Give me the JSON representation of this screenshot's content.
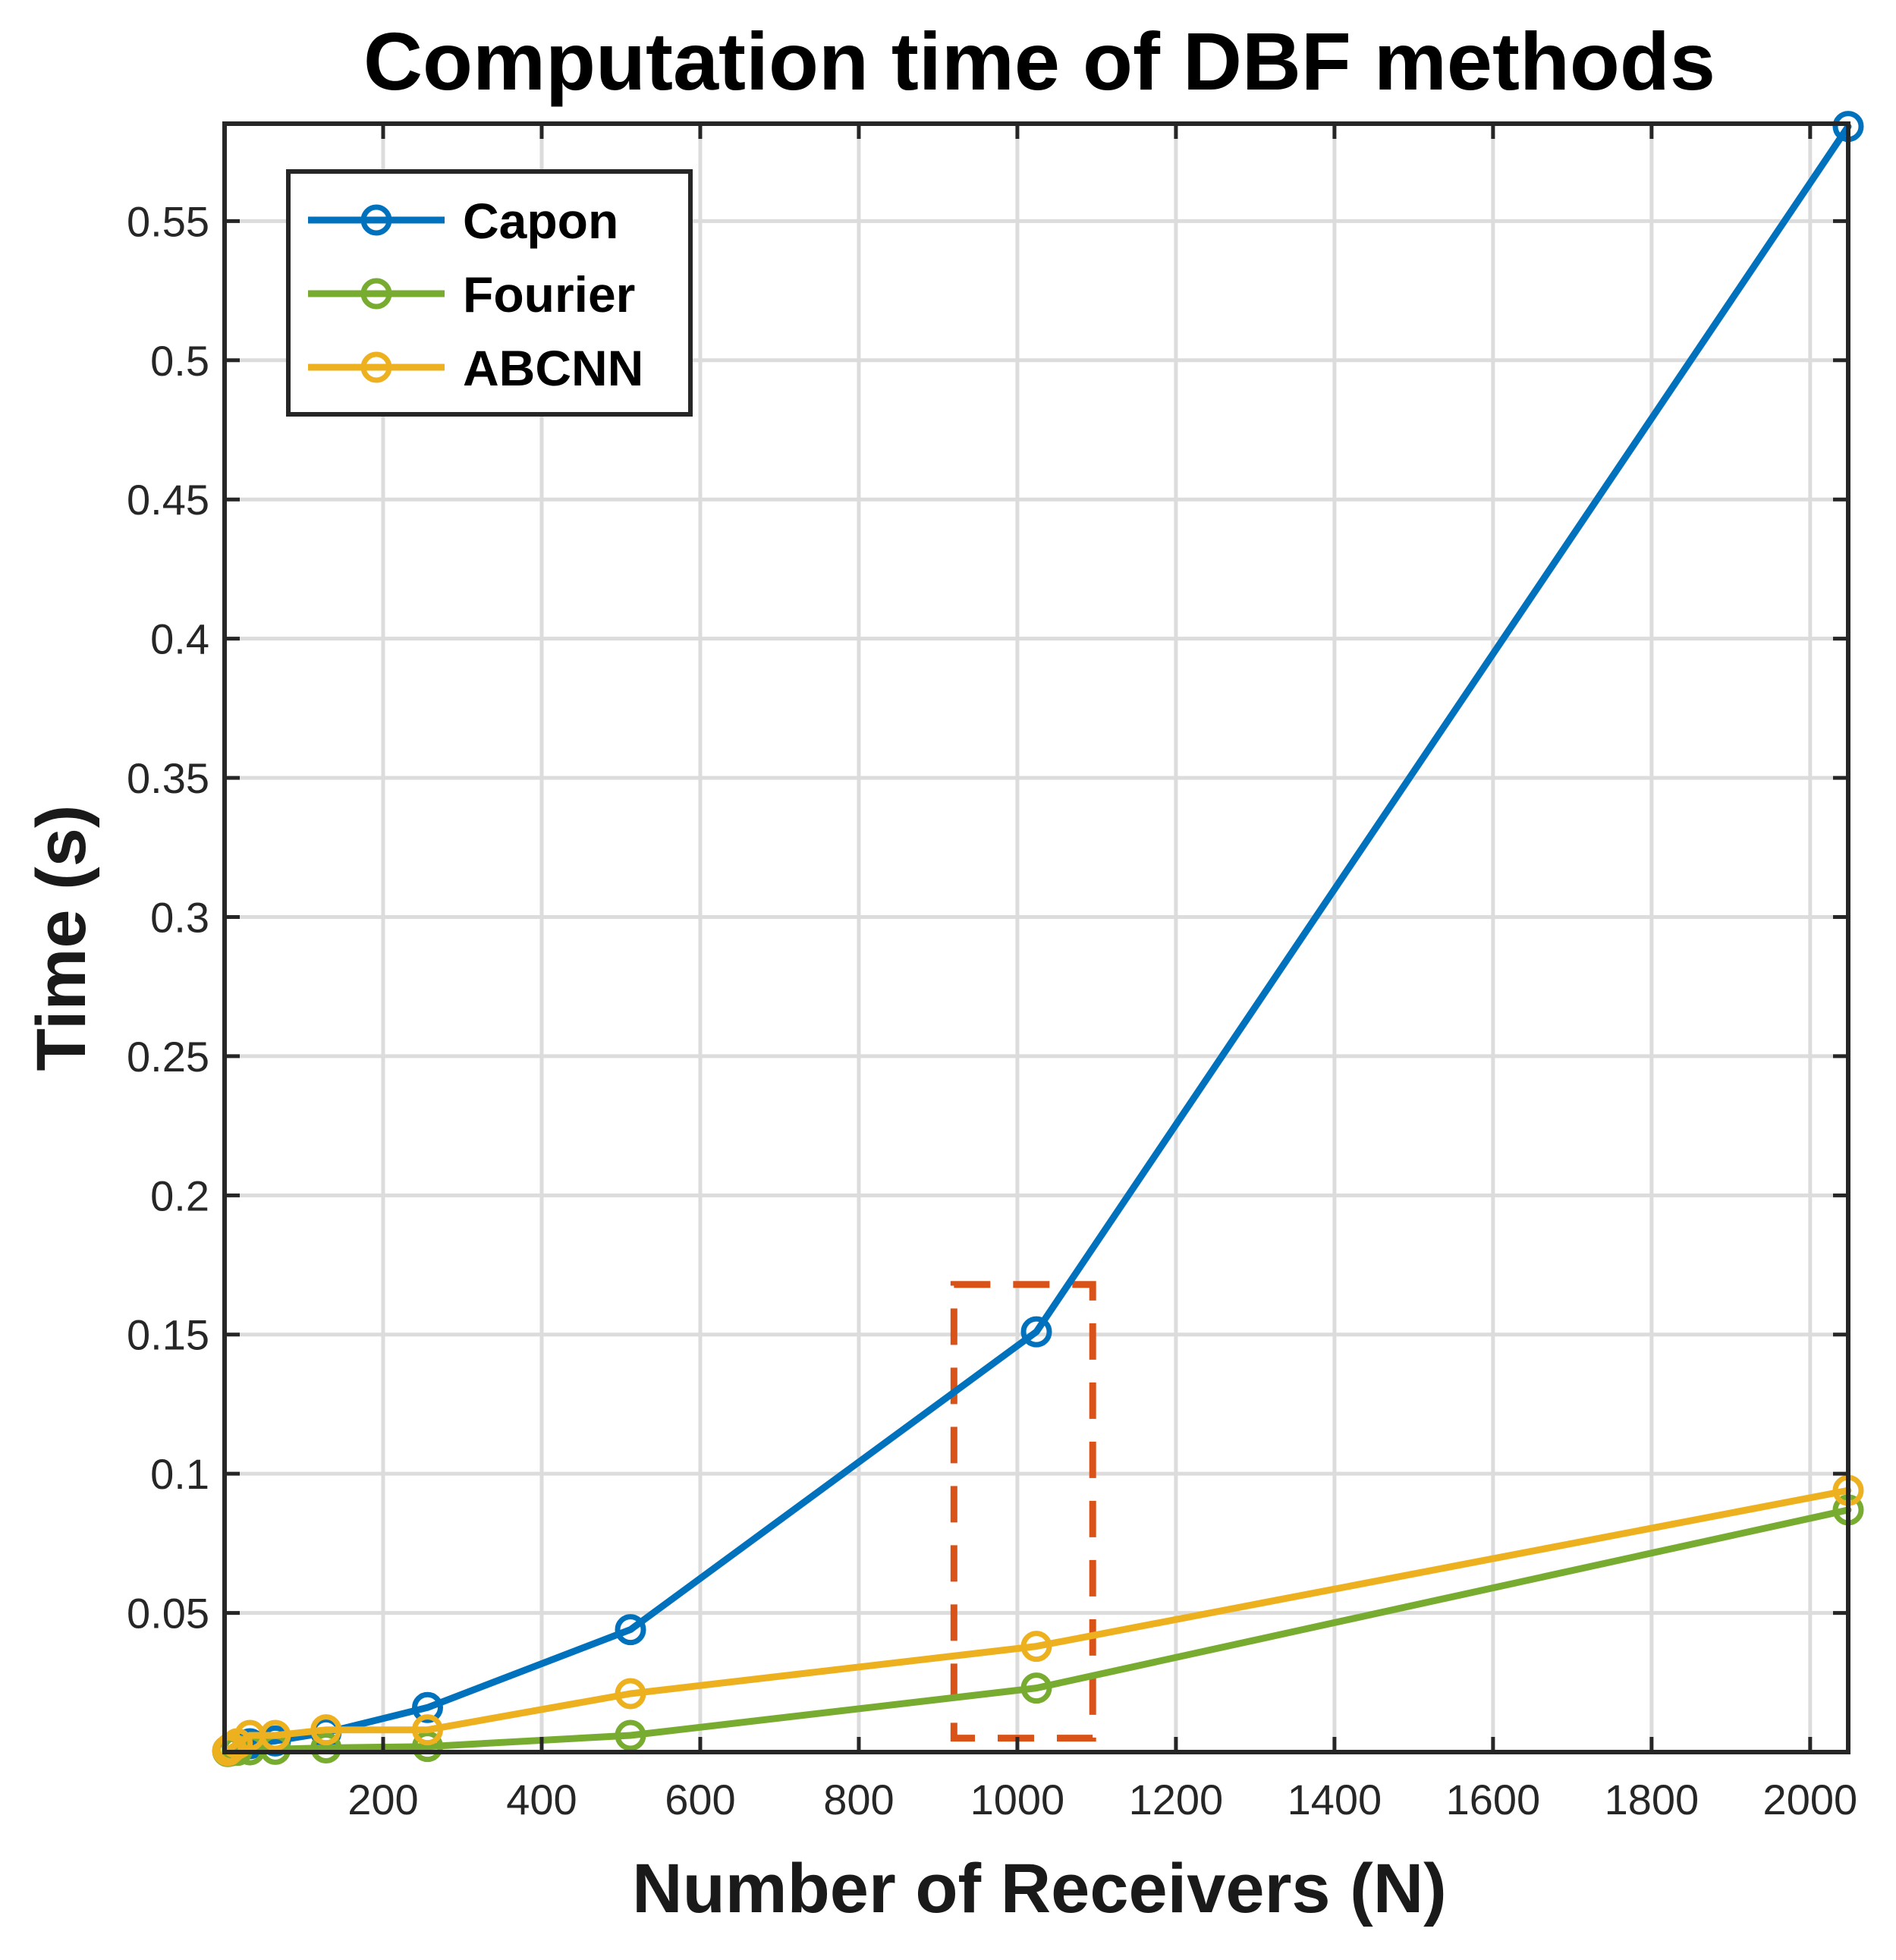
{
  "chart_data": {
    "type": "line",
    "title": "Computation time of DBF methods",
    "xlabel": "Number of Receivers (N)",
    "ylabel": "Time (s)",
    "xlim": [
      0,
      2048
    ],
    "ylim": [
      0,
      0.585
    ],
    "xticks": [
      200,
      400,
      600,
      800,
      1000,
      1200,
      1400,
      1600,
      1800,
      2000
    ],
    "yticks": [
      0.05,
      0.1,
      0.15,
      0.2,
      0.25,
      0.3,
      0.35,
      0.4,
      0.45,
      0.5,
      0.55
    ],
    "xtick_labels": [
      "200",
      "400",
      "600",
      "800",
      "1000",
      "1200",
      "1400",
      "1600",
      "1800",
      "2000"
    ],
    "ytick_labels": [
      "0.05",
      "0.1",
      "0.15",
      "0.2",
      "0.25",
      "0.3",
      "0.35",
      "0.4",
      "0.45",
      "0.5",
      "0.55"
    ],
    "grid": true,
    "legend_position": "top-left",
    "x": [
      4,
      8,
      16,
      32,
      64,
      128,
      256,
      512,
      1024,
      2048
    ],
    "series": [
      {
        "name": "Capon",
        "color": "#0072BD",
        "values": [
          0.0005,
          0.001,
          0.002,
          0.003,
          0.004,
          0.007,
          0.016,
          0.044,
          0.151,
          0.584
        ]
      },
      {
        "name": "Fourier",
        "color": "#77AC30",
        "values": [
          0.0002,
          0.0004,
          0.0006,
          0.0008,
          0.001,
          0.0015,
          0.002,
          0.006,
          0.023,
          0.087
        ]
      },
      {
        "name": "ABCNN",
        "color": "#EDB120",
        "values": [
          0.0005,
          0.0015,
          0.003,
          0.006,
          0.006,
          0.008,
          0.008,
          0.021,
          0.038,
          0.094
        ]
      }
    ],
    "annotations": [
      {
        "type": "dashed-rectangle",
        "color": "#D95319",
        "x_range": [
          920,
          1095
        ],
        "y_range": [
          0.005,
          0.168
        ]
      }
    ]
  }
}
